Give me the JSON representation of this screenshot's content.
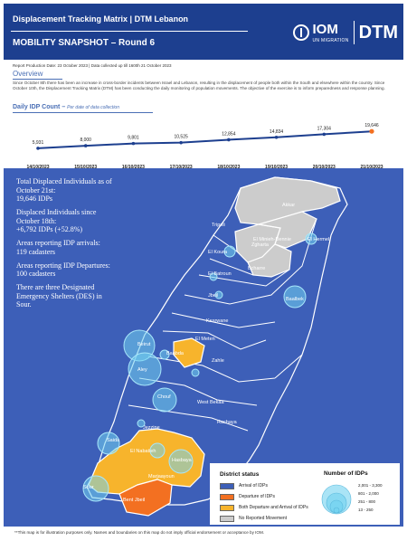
{
  "header": {
    "title": "Displacement Tracking Matrix | DTM Lebanon",
    "subtitle": "MOBILITY SNAPSHOT – Round 6",
    "iom": "IOM",
    "iom_sub": "UN MIGRATION",
    "dtm": "DTM"
  },
  "meta": "Report Production Date: 23 October 2023 | Data collected up till 1600h 21 October 2023",
  "overview": {
    "title": "Overview",
    "text": "Since October 8th there has been an increase in cross-border incidents between Israel and Lebanon, resulting in the displacement of people both within the South and elsewhere within the country. Since October 10th, the Displacement Tracking Matrix (DTM) has been conducting the daily monitoring of population movements. The objective of the exercise is to inform preparedness and response planning."
  },
  "chart_title": "Daily IDP Count –",
  "chart_subtitle": "Per date of data collection",
  "chart_data": {
    "type": "line",
    "categories": [
      "14/10/2023",
      "15/10/2023",
      "16/10/2023",
      "17/10/2023",
      "18/10/2023",
      "19/10/2023",
      "20/10/2023",
      "21/10/2023"
    ],
    "values": [
      5931,
      8000,
      9801,
      10525,
      12854,
      14834,
      17304,
      19646
    ],
    "value_labels": [
      "5,931",
      "8,000",
      "9,801",
      "10,525",
      "12,854",
      "14,834",
      "17,304",
      "19,646"
    ],
    "colors": {
      "line": "#1d3f8f",
      "last_point": "#f37021"
    }
  },
  "stats": [
    {
      "label": "Total Displaced Individuals as of October 21st:",
      "value": "19,646 IDPs"
    },
    {
      "label": "Displaced Individuals since October 18th:",
      "value": "+6,792 IDPs (+52.8%)"
    },
    {
      "label": "Areas reporting IDP arrivals:",
      "value": "119 cadasters"
    },
    {
      "label": "Areas reporting IDP Departures:",
      "value": "100 cadasters"
    },
    {
      "label": "There are three Designated Emergency Shelters (DES) in Sour.",
      "value": ""
    }
  ],
  "map": {
    "colors": {
      "arrival": "#3d5fb8",
      "departure": "#f37021",
      "both": "#f7b42c",
      "none": "#cccccc",
      "sea": "#3d5fb8",
      "bubble": "#72d2f0"
    },
    "districts": [
      "Akkar",
      "Tripoli",
      "Zgharta",
      "El Minieh-Dennie",
      "El Hermel",
      "El Koura",
      "Bcharre",
      "El Batroun",
      "Jbeil",
      "Baalbek",
      "Kesrwane",
      "El Meten",
      "Beirut",
      "Baabda",
      "Aley",
      "Zahle",
      "Chouf",
      "West Bekaa",
      "Rachaya",
      "Jezzine",
      "Saida",
      "El Nabatieh",
      "Hasbaya",
      "Marjaayoun",
      "Sour",
      "Bent Jbeil"
    ]
  },
  "legend": {
    "title": "District status",
    "items": [
      {
        "label": "Arrival of IDPs",
        "color": "#3d5fb8"
      },
      {
        "label": "Departure of IDPs",
        "color": "#f37021"
      },
      {
        "label": "Both Departure and Arrival of IDPs",
        "color": "#f7b42c"
      },
      {
        "label": "No Reported Movement",
        "color": "#cccccc"
      }
    ],
    "size_title": "Number of IDPs",
    "sizes": [
      "2,001 - 3,300",
      "801 - 2,000",
      "251 - 800",
      "13 - 250"
    ]
  },
  "footer": "**This map is for illustration purposes only. Names and boundaries on this map do not imply official endorsement or acceptance by IOM."
}
